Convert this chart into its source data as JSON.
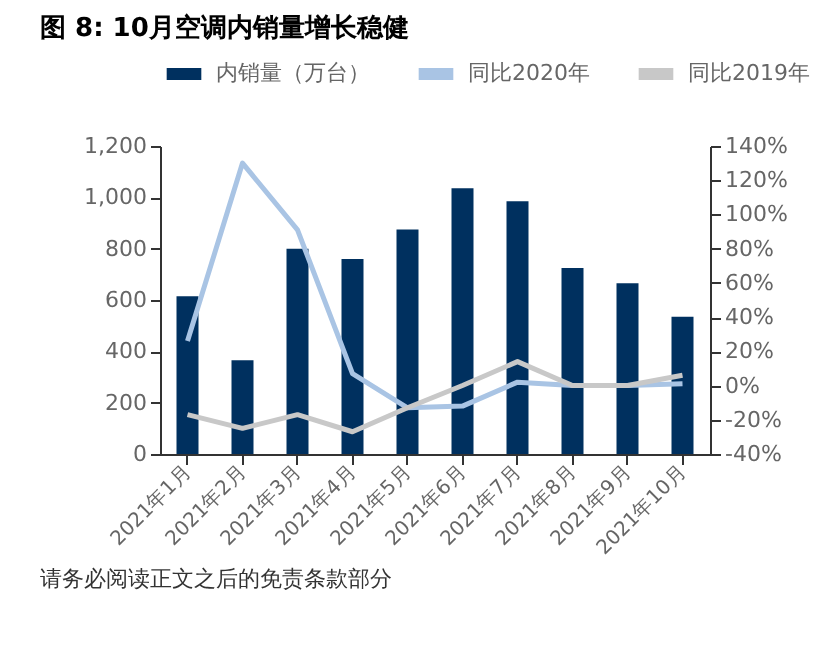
{
  "chart_data": {
    "type": "bar",
    "title": "图 8:  10月空调内销量增长稳健",
    "categories": [
      "2021年1月",
      "2021年2月",
      "2021年3月",
      "2021年4月",
      "2021年5月",
      "2021年6月",
      "2021年7月",
      "2021年8月",
      "2021年9月",
      "2021年10月"
    ],
    "series": [
      {
        "name": "内销量（万台）",
        "color": "#00305f",
        "values": [
          615,
          365,
          800,
          760,
          875,
          1035,
          985,
          725,
          665,
          535
        ]
      },
      {
        "name": "同比2020年",
        "type": "line",
        "axis": "y2",
        "color": "#a9c4e4",
        "values": [
          26,
          130,
          91,
          7,
          -13,
          -12,
          2,
          0,
          0,
          1
        ]
      },
      {
        "name": "同比2019年",
        "type": "line",
        "axis": "y2",
        "color": "#c8c8c8",
        "values": [
          -17,
          -25,
          -17,
          -27,
          -13,
          0,
          14,
          0,
          0,
          6
        ]
      }
    ],
    "ylim": [
      0,
      1200
    ],
    "yticks": [
      0,
      {
        "value": 200,
        "label": "200"
      },
      400,
      600,
      800,
      {
        "value": 1000,
        "label": "1,000"
      },
      {
        "value": 1200,
        "label": "1,200"
      }
    ],
    "y2lim": [
      -40,
      140
    ],
    "y2ticks": [
      {
        "value": -40,
        "label": "-40%"
      },
      {
        "value": -20,
        "label": "-20%"
      },
      {
        "value": 0,
        "label": "0%"
      },
      {
        "value": 20,
        "label": "20%"
      },
      {
        "value": 40,
        "label": "40%"
      },
      {
        "value": 60,
        "label": "60%"
      },
      {
        "value": 80,
        "label": "80%"
      },
      {
        "value": 100,
        "label": "100%"
      },
      {
        "value": 120,
        "label": "120%"
      },
      {
        "value": 140,
        "label": "140%"
      }
    ],
    "legend": "top",
    "grid": false,
    "annotations": [
      "请务必阅读正文之后的免责条款部分"
    ]
  }
}
